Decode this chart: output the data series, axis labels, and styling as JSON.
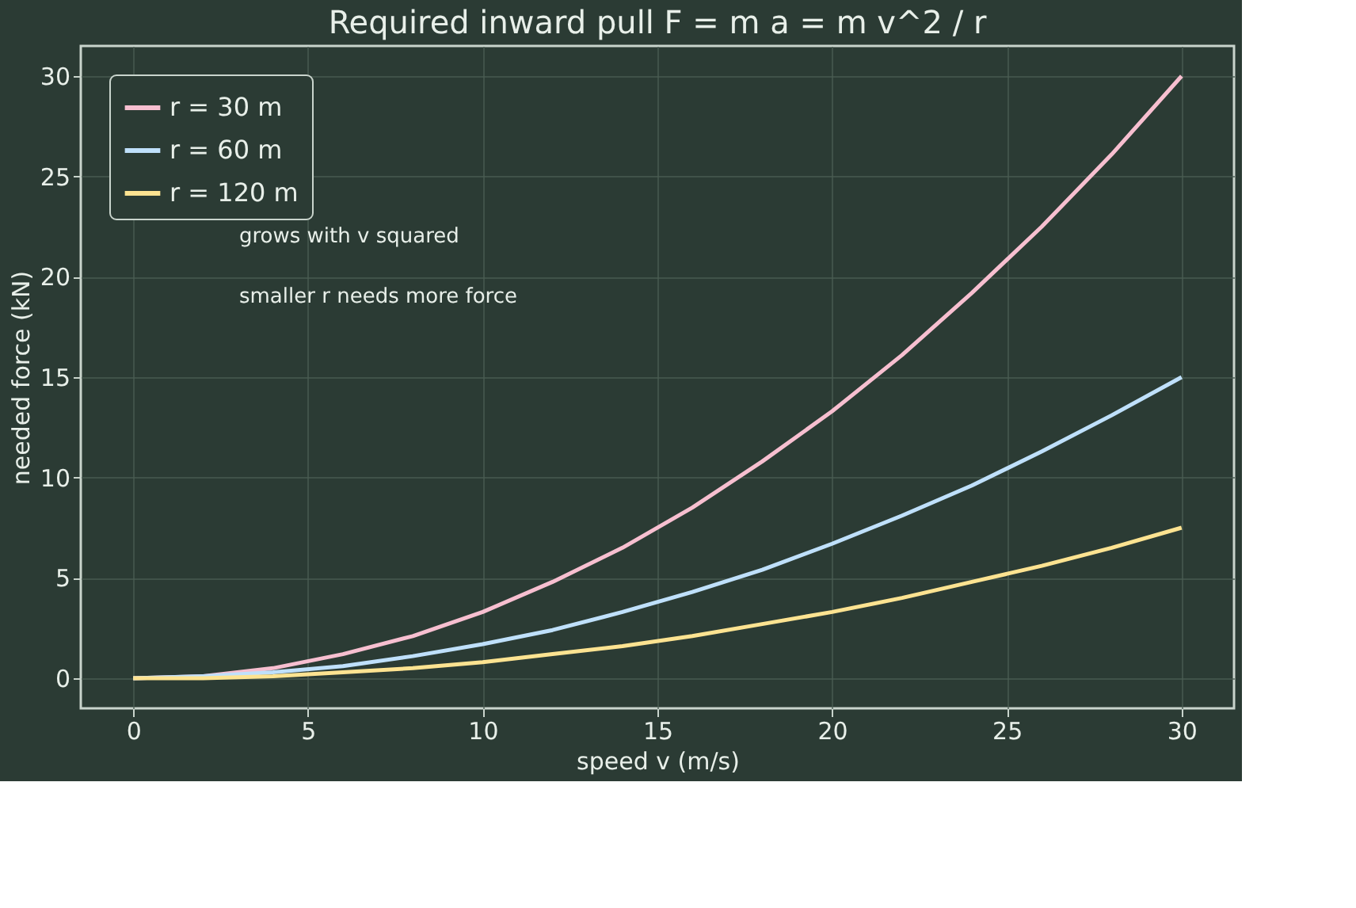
{
  "chart_data": {
    "type": "line",
    "title": "Required inward pull  F = m a = m v^2 / r",
    "xlabel": "speed v  (m/s)",
    "ylabel": "needed force  (kN)",
    "x": [
      0,
      2,
      4,
      6,
      8,
      10,
      12,
      14,
      16,
      18,
      20,
      22,
      24,
      26,
      28,
      30
    ],
    "series": [
      {
        "name": "r = 30 m",
        "color": "#f7bfd0",
        "values": [
          0,
          0.1,
          0.5,
          1.2,
          2.1,
          3.3,
          4.8,
          6.5,
          8.5,
          10.8,
          13.3,
          16.1,
          19.2,
          22.5,
          26.1,
          30
        ]
      },
      {
        "name": "r = 60 m",
        "color": "#bfe0fb",
        "values": [
          0,
          0.1,
          0.3,
          0.6,
          1.1,
          1.7,
          2.4,
          3.3,
          4.3,
          5.4,
          6.7,
          8.1,
          9.6,
          11.3,
          13.1,
          15
        ]
      },
      {
        "name": "r = 120 m",
        "color": "#fde391",
        "values": [
          0,
          0.0,
          0.1,
          0.3,
          0.5,
          0.8,
          1.2,
          1.6,
          2.1,
          2.7,
          3.3,
          4.0,
          4.8,
          5.6,
          6.5,
          7.5
        ]
      }
    ],
    "annotations": [
      "grows with v squared",
      "smaller r needs more force"
    ],
    "xlim": [
      -1.5,
      31.5
    ],
    "ylim": [
      -1.5,
      31.5
    ],
    "xticks": [
      0,
      5,
      10,
      15,
      20,
      25,
      30
    ],
    "yticks": [
      0,
      5,
      10,
      15,
      20,
      25,
      30
    ],
    "grid": true,
    "legend": "top left",
    "marker": "none",
    "line_style": "solid"
  }
}
